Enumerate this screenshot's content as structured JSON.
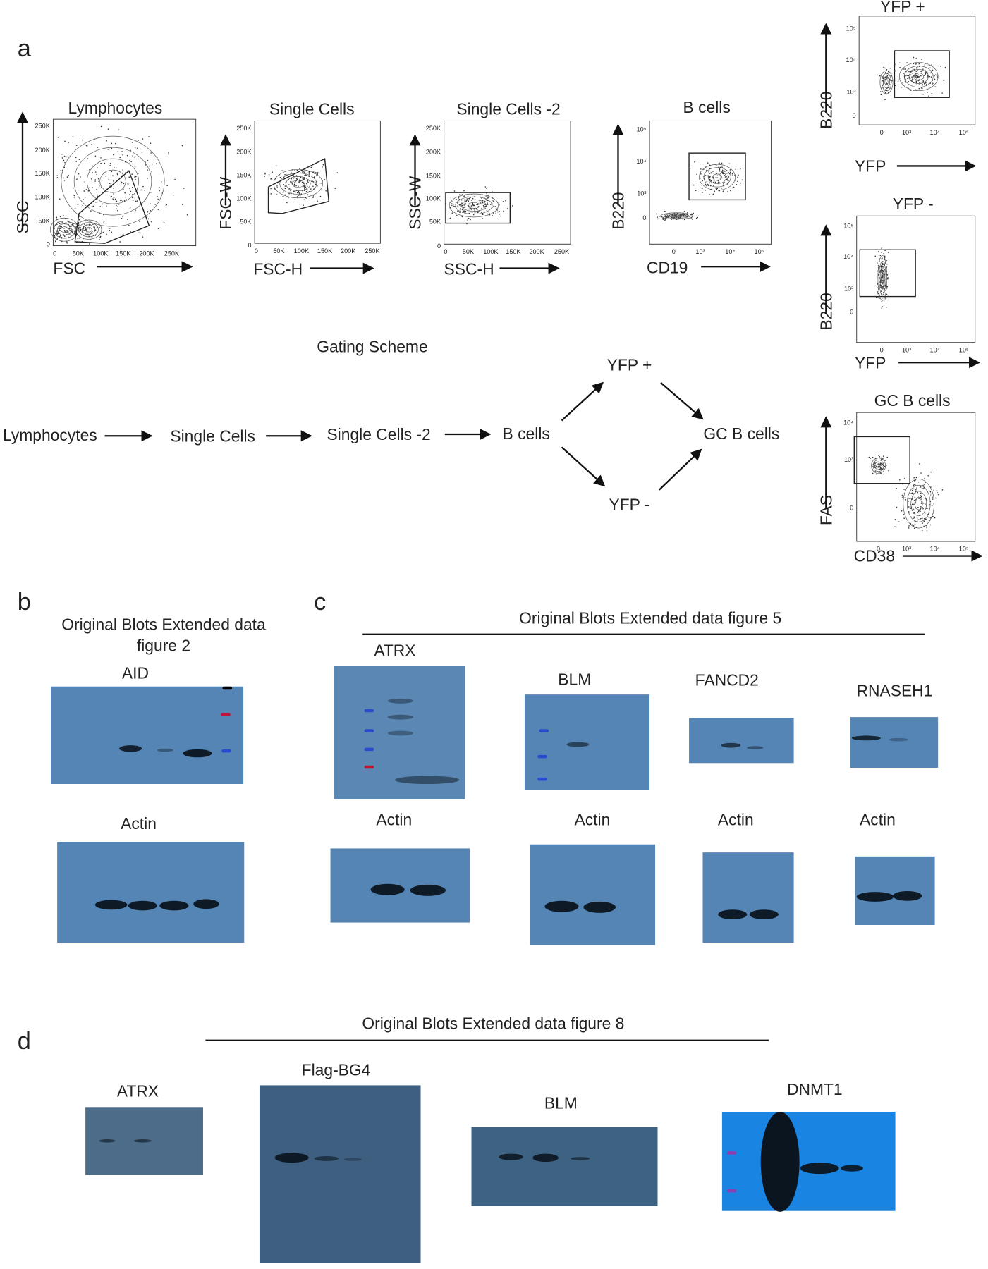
{
  "panel_a": {
    "label": "a",
    "plots": [
      {
        "title": "Lymphocytes",
        "x_label": "FSC",
        "y_label": "SSC",
        "x_ticks": [
          "0",
          "50K",
          "100K",
          "150K",
          "200K",
          "250K"
        ],
        "y_ticks": [
          "250K",
          "200K",
          "150K",
          "100K",
          "50K",
          "0"
        ]
      },
      {
        "title": "Single Cells",
        "x_label": "FSC-H",
        "y_label": "FSC-W",
        "x_ticks": [
          "0",
          "50K",
          "100K",
          "150K",
          "200K",
          "250K"
        ],
        "y_ticks": [
          "250K",
          "200K",
          "150K",
          "100K",
          "50K",
          "0"
        ]
      },
      {
        "title": "Single Cells -2",
        "x_label": "SSC-H",
        "y_label": "SSC-W",
        "x_ticks": [
          "0",
          "50K",
          "100K",
          "150K",
          "200K",
          "250K"
        ],
        "y_ticks": [
          "250K",
          "200K",
          "150K",
          "100K",
          "50K",
          "0"
        ]
      },
      {
        "title": "B cells",
        "x_label": "CD19",
        "y_label": "B220",
        "x_ticks": [
          "0",
          "10³",
          "10⁴",
          "10⁵"
        ],
        "y_ticks": [
          "10⁵",
          "10⁴",
          "10³",
          "0"
        ]
      },
      {
        "title": "YFP +",
        "x_label": "YFP",
        "y_label": "B220",
        "x_ticks": [
          "0",
          "10³",
          "10⁴",
          "10⁵"
        ],
        "y_ticks": [
          "10⁵",
          "10⁴",
          "10³",
          "0"
        ]
      },
      {
        "title": "YFP -",
        "x_label": "YFP",
        "y_label": "B220",
        "x_ticks": [
          "0",
          "10³",
          "10⁴",
          "10⁵"
        ],
        "y_ticks": [
          "10⁵",
          "10⁴",
          "10³",
          "0"
        ]
      },
      {
        "title": "GC B cells",
        "x_label": "CD38",
        "y_label": "FAS",
        "x_ticks": [
          "0",
          "10³",
          "10⁴",
          "10⁵"
        ],
        "y_ticks": [
          "10⁴",
          "10³",
          "0"
        ]
      }
    ],
    "gating_scheme": {
      "title": "Gating Scheme",
      "nodes": [
        "Lymphocytes",
        "Single Cells",
        "Single Cells -2",
        "B cells",
        "YFP +",
        "YFP -",
        "GC B cells"
      ]
    }
  },
  "panel_b": {
    "label": "b",
    "title_lines": [
      "Original Blots Extended data",
      "figure 2"
    ],
    "blots": [
      "AID",
      "Actin"
    ]
  },
  "panel_c": {
    "label": "c",
    "title": "Original Blots Extended data figure 5",
    "blots": [
      "ATRX",
      "BLM",
      "FANCD2",
      "RNASEH1",
      "Actin",
      "Actin",
      "Actin",
      "Actin"
    ]
  },
  "panel_d": {
    "label": "d",
    "title": "Original Blots Extended data figure 8",
    "blots": [
      "ATRX",
      "Flag-BG4",
      "BLM",
      "DNMT1"
    ]
  }
}
